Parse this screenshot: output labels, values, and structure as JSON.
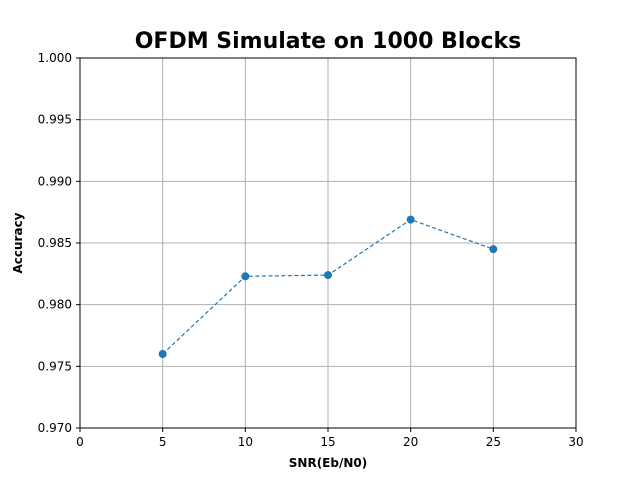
{
  "chart_data": {
    "type": "line",
    "title": "OFDM Simulate on 1000 Blocks",
    "xlabel": "SNR(Eb/N0)",
    "ylabel": "Accuracy",
    "xlim": [
      0,
      30
    ],
    "ylim": [
      0.97,
      1.0
    ],
    "xticks": [
      0,
      5,
      10,
      15,
      20,
      25,
      30
    ],
    "xtick_labels": [
      "0",
      "5",
      "10",
      "15",
      "20",
      "25",
      "30"
    ],
    "yticks": [
      0.97,
      0.975,
      0.98,
      0.985,
      0.99,
      0.995,
      1.0
    ],
    "ytick_labels": [
      "0.970",
      "0.975",
      "0.980",
      "0.985",
      "0.990",
      "0.995",
      "1.000"
    ],
    "grid": true,
    "series": [
      {
        "x": [
          5,
          10,
          15,
          20,
          25
        ],
        "y": [
          0.976,
          0.9823,
          0.9824,
          0.9869,
          0.9845
        ],
        "color": "#1f77b4",
        "line_style": "dashed",
        "marker": "circle"
      }
    ]
  }
}
